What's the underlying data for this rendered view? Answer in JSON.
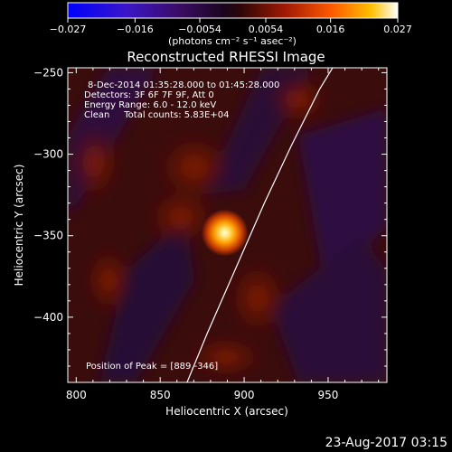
{
  "chart_data": {
    "type": "heatmap",
    "title": "Reconstructed RHESSI Image",
    "xlabel": "Heliocentric X (arcsec)",
    "ylabel": "Heliocentric Y (arcsec)",
    "xlim": [
      795,
      985
    ],
    "ylim": [
      -440,
      -247
    ],
    "x_ticks": [
      800,
      850,
      900,
      950
    ],
    "y_ticks": [
      -250,
      -300,
      -350,
      -400
    ],
    "colorbar": {
      "ticks": [
        -0.027,
        -0.016,
        -0.0054,
        0.0054,
        0.016,
        0.027
      ],
      "tick_labels": [
        "−0.027",
        "−0.016",
        "−0.0054",
        "0.0054",
        "0.016",
        "0.027"
      ],
      "range": [
        -0.027,
        0.027
      ],
      "units": "(photons cm⁻² s⁻¹ asec⁻²)",
      "colormap": "hot-with-negative-blue"
    },
    "annotations": [
      "8-Dec-2014 01:35:28.000 to 01:45:28.000",
      "Detectors: 3F 6F 7F 9F, Att 0",
      "Energy Range: 6.0 - 12.0 keV",
      "Clean     Total counts: 5.83E+04"
    ],
    "peak": {
      "label": "Position of Peak = [889,-346]",
      "x": 889,
      "y": -346
    },
    "limb": [
      [
        866,
        -440
      ],
      [
        878,
        -410
      ],
      [
        895,
        -370
      ],
      [
        912,
        -330
      ],
      [
        928,
        -295
      ],
      [
        945,
        -260
      ],
      [
        955,
        -243
      ]
    ],
    "grid": false,
    "legend": "none"
  },
  "timestamp": "23-Aug-2017 03:15",
  "colors": {
    "background": "#000000",
    "axes": "#ffffff",
    "peak_core": "#fff3a8",
    "peak_mid": "#ff9a00",
    "diffuse_red": "#7a1406",
    "negative_purple": "#3a1550"
  }
}
